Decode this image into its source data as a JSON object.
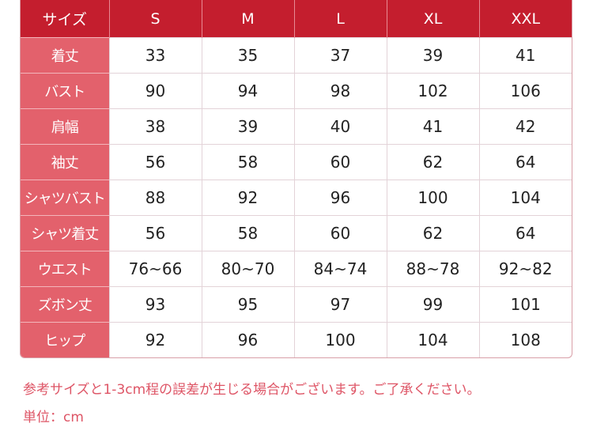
{
  "table": {
    "corner": "サイズ",
    "sizes": [
      "S",
      "M",
      "L",
      "XL",
      "XXL"
    ],
    "rows": [
      {
        "label": "着丈",
        "values": [
          "33",
          "35",
          "37",
          "39",
          "41"
        ]
      },
      {
        "label": "バスト",
        "values": [
          "90",
          "94",
          "98",
          "102",
          "106"
        ]
      },
      {
        "label": "肩幅",
        "values": [
          "38",
          "39",
          "40",
          "41",
          "42"
        ]
      },
      {
        "label": "袖丈",
        "values": [
          "56",
          "58",
          "60",
          "62",
          "64"
        ]
      },
      {
        "label": "シャツバスト",
        "values": [
          "88",
          "92",
          "96",
          "100",
          "104"
        ]
      },
      {
        "label": "シャツ着丈",
        "values": [
          "56",
          "58",
          "60",
          "62",
          "64"
        ]
      },
      {
        "label": "ウエスト",
        "values": [
          "76~66",
          "80~70",
          "84~74",
          "88~78",
          "92~82"
        ]
      },
      {
        "label": "ズボン丈",
        "values": [
          "93",
          "95",
          "97",
          "99",
          "101"
        ]
      },
      {
        "label": "ヒップ",
        "values": [
          "92",
          "96",
          "100",
          "104",
          "108"
        ]
      }
    ]
  },
  "notes": {
    "disclaimer": "参考サイズと1-3cm程の誤差が生じる場合がございます。ご了承ください。",
    "unit": "単位：cm"
  },
  "colors": {
    "header": "#c41e2e",
    "label_column": "#e3616c",
    "note_text": "#de5566"
  }
}
